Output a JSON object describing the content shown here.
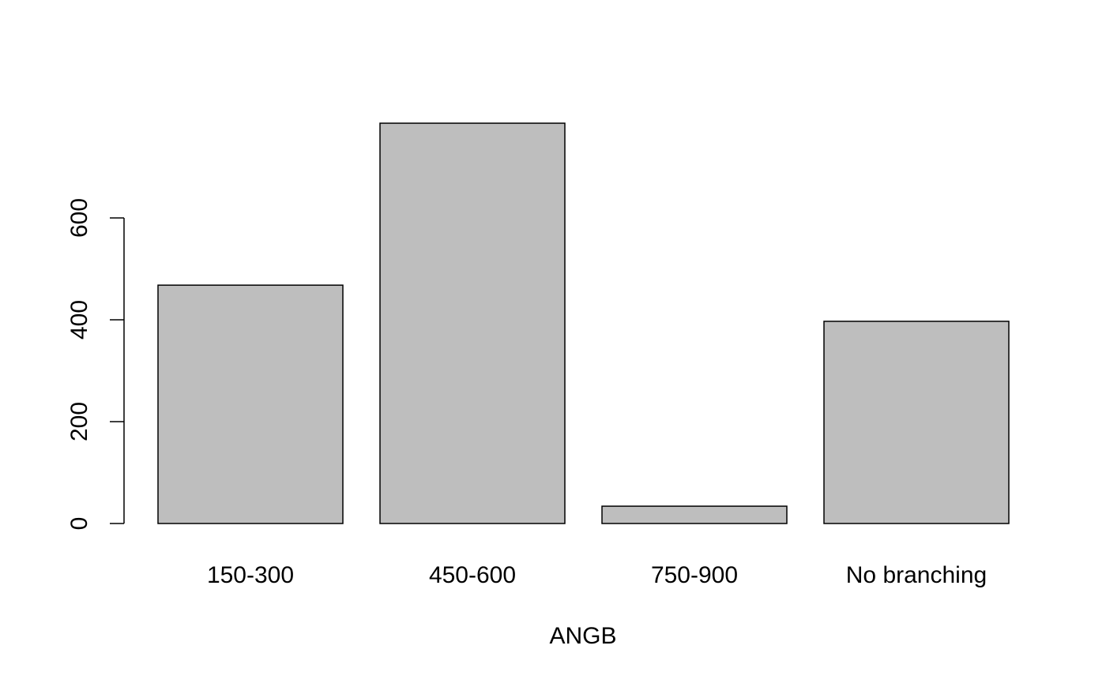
{
  "chart_data": {
    "type": "bar",
    "title": "",
    "xlabel": "ANGB",
    "ylabel": "",
    "categories": [
      "150-300",
      "450-600",
      "750-900",
      "No branching"
    ],
    "values": [
      468,
      786,
      34,
      397
    ],
    "yticks": [
      0,
      200,
      400,
      600
    ],
    "ylim": [
      0,
      786
    ],
    "grid": false,
    "legend": "none",
    "colors": {
      "bar_fill": "#bebebe",
      "bar_stroke": "#000000",
      "text": "#000000"
    }
  }
}
